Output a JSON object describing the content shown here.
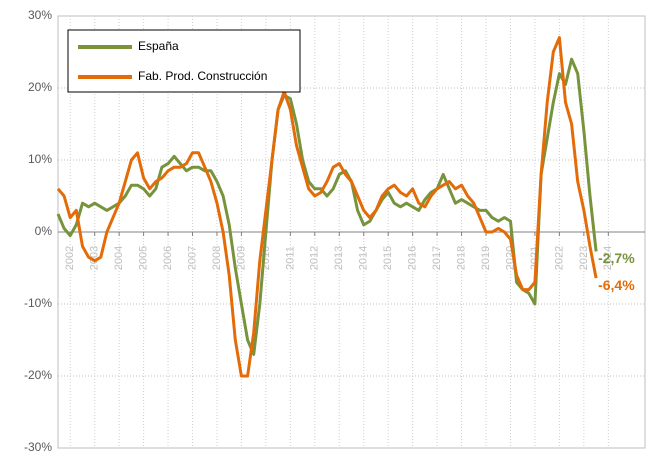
{
  "chart_data": {
    "type": "line",
    "xlim": [
      2001.5,
      2025.5
    ],
    "xticks": [
      2002,
      2003,
      2004,
      2005,
      2006,
      2007,
      2008,
      2009,
      2010,
      2011,
      2012,
      2013,
      2014,
      2015,
      2016,
      2017,
      2018,
      2019,
      2020,
      2021,
      2022,
      2023,
      2024
    ],
    "ylim": [
      -30,
      30
    ],
    "yticks": [
      {
        "value": -30,
        "label": "-30%"
      },
      {
        "value": -20,
        "label": "-20%"
      },
      {
        "value": -10,
        "label": "-10%"
      },
      {
        "value": 0,
        "label": "0%"
      },
      {
        "value": 10,
        "label": "10%"
      },
      {
        "value": 20,
        "label": "20%"
      },
      {
        "value": 30,
        "label": "30%"
      }
    ],
    "grid": true,
    "legend": "upper left",
    "x": [
      2001.5,
      2001.75,
      2002,
      2002.25,
      2002.5,
      2002.75,
      2003,
      2003.25,
      2003.5,
      2003.75,
      2004,
      2004.25,
      2004.5,
      2004.75,
      2005,
      2005.25,
      2005.5,
      2005.75,
      2006,
      2006.25,
      2006.5,
      2006.75,
      2007,
      2007.25,
      2007.5,
      2007.75,
      2008,
      2008.25,
      2008.5,
      2008.75,
      2009,
      2009.25,
      2009.5,
      2009.75,
      2010,
      2010.25,
      2010.5,
      2010.75,
      2011,
      2011.25,
      2011.5,
      2011.75,
      2012,
      2012.25,
      2012.5,
      2012.75,
      2013,
      2013.25,
      2013.5,
      2013.75,
      2014,
      2014.25,
      2014.5,
      2014.75,
      2015,
      2015.25,
      2015.5,
      2015.75,
      2016,
      2016.25,
      2016.5,
      2016.75,
      2017,
      2017.25,
      2017.5,
      2017.75,
      2018,
      2018.25,
      2018.5,
      2018.75,
      2019,
      2019.25,
      2019.5,
      2019.75,
      2020,
      2020.25,
      2020.5,
      2020.75,
      2021,
      2021.25,
      2021.5,
      2021.75,
      2022,
      2022.25,
      2022.5,
      2022.75,
      2023,
      2023.25,
      2023.5
    ],
    "series": [
      {
        "name": "España",
        "color": "#77933c",
        "values": [
          2.5,
          0.5,
          -0.5,
          1,
          4,
          3.5,
          4,
          3.5,
          3,
          3.5,
          4,
          5,
          6.5,
          6.5,
          6,
          5,
          6,
          9,
          9.5,
          10.5,
          9.5,
          8.5,
          9,
          9,
          8.5,
          8.5,
          7,
          5,
          1,
          -5,
          -10,
          -15,
          -17,
          -10,
          0,
          10,
          17,
          19,
          18.5,
          15,
          10,
          7,
          6,
          6,
          5,
          6,
          8,
          8.5,
          7,
          3,
          1,
          1.5,
          3,
          4.5,
          5.5,
          4,
          3.5,
          4,
          3.5,
          3,
          4.5,
          5.5,
          6,
          8,
          6,
          4,
          4.5,
          4,
          3.5,
          3,
          3,
          2,
          1.5,
          2,
          1.5,
          -7,
          -8,
          -8.5,
          -10,
          8,
          13,
          18,
          22,
          20.5,
          24,
          22,
          14,
          5,
          -2.7
        ],
        "value_labels": [
          null,
          null,
          null,
          null,
          null,
          null,
          null,
          null,
          null,
          null,
          null,
          null,
          null,
          null,
          null,
          null,
          null,
          null,
          null,
          null,
          null,
          null,
          null,
          null,
          null,
          null,
          null,
          null,
          null,
          null,
          null,
          null,
          null,
          null,
          null,
          null,
          null,
          null,
          null,
          null,
          null,
          null,
          null,
          null,
          null,
          null,
          null,
          null,
          null,
          null,
          null,
          null,
          null,
          null,
          null,
          null,
          null,
          null,
          null,
          null,
          null,
          null,
          null,
          null,
          null,
          null,
          null,
          null,
          null,
          null,
          null,
          null,
          null,
          null,
          null,
          null,
          null,
          null,
          null,
          null,
          null,
          null,
          null,
          null,
          null,
          null,
          null,
          null,
          "-2,7%"
        ]
      },
      {
        "name": "Fab. Prod. Construcción",
        "color": "#e36c09",
        "values": [
          6,
          5,
          2,
          3,
          -2,
          -3.5,
          -4,
          -3.5,
          0,
          2,
          4,
          7,
          10,
          11,
          7.5,
          6,
          7,
          7.5,
          8.5,
          9,
          9,
          9.5,
          11,
          11,
          9,
          7,
          4,
          0,
          -6,
          -15,
          -20,
          -20,
          -14,
          -4,
          3,
          10,
          17,
          19.5,
          17,
          12,
          9,
          6,
          5,
          5.5,
          7,
          9,
          9.5,
          8,
          7,
          5,
          3,
          2,
          3,
          5,
          6,
          6.5,
          5.5,
          5,
          6,
          4,
          3.5,
          5,
          6,
          6.5,
          7,
          6,
          6.5,
          5,
          4,
          2,
          0,
          0,
          0.5,
          0,
          -1,
          -6,
          -8,
          -8,
          -7,
          8,
          18,
          25,
          27,
          18,
          15,
          7,
          3,
          -2,
          -6.4
        ],
        "value_labels": [
          null,
          null,
          null,
          null,
          null,
          null,
          null,
          null,
          null,
          null,
          null,
          null,
          null,
          null,
          null,
          null,
          null,
          null,
          null,
          null,
          null,
          null,
          null,
          null,
          null,
          null,
          null,
          null,
          null,
          null,
          null,
          null,
          null,
          null,
          null,
          null,
          null,
          null,
          null,
          null,
          null,
          null,
          null,
          null,
          null,
          null,
          null,
          null,
          null,
          null,
          null,
          null,
          null,
          null,
          null,
          null,
          null,
          null,
          null,
          null,
          null,
          null,
          null,
          null,
          null,
          null,
          null,
          null,
          null,
          null,
          null,
          null,
          null,
          null,
          null,
          null,
          null,
          null,
          null,
          null,
          null,
          null,
          null,
          null,
          null,
          null,
          null,
          null,
          "-6,4%"
        ]
      }
    ]
  }
}
